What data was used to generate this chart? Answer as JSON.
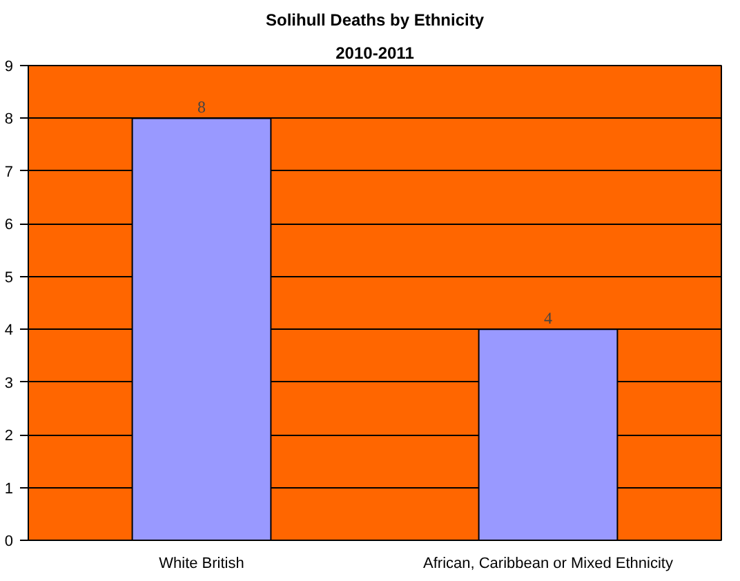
{
  "chart_data": {
    "type": "bar",
    "title": "Solihull Deaths by Ethnicity",
    "subtitle": "2010-2011",
    "categories": [
      "White British",
      "African, Caribbean or Mixed Ethnicity"
    ],
    "values": [
      8,
      4
    ],
    "color": "#9999ff",
    "ylim": [
      0,
      9
    ],
    "yticks": [
      0,
      1,
      2,
      3,
      4,
      5,
      6,
      7,
      8,
      9
    ],
    "grid": "y",
    "data_labels": true
  }
}
